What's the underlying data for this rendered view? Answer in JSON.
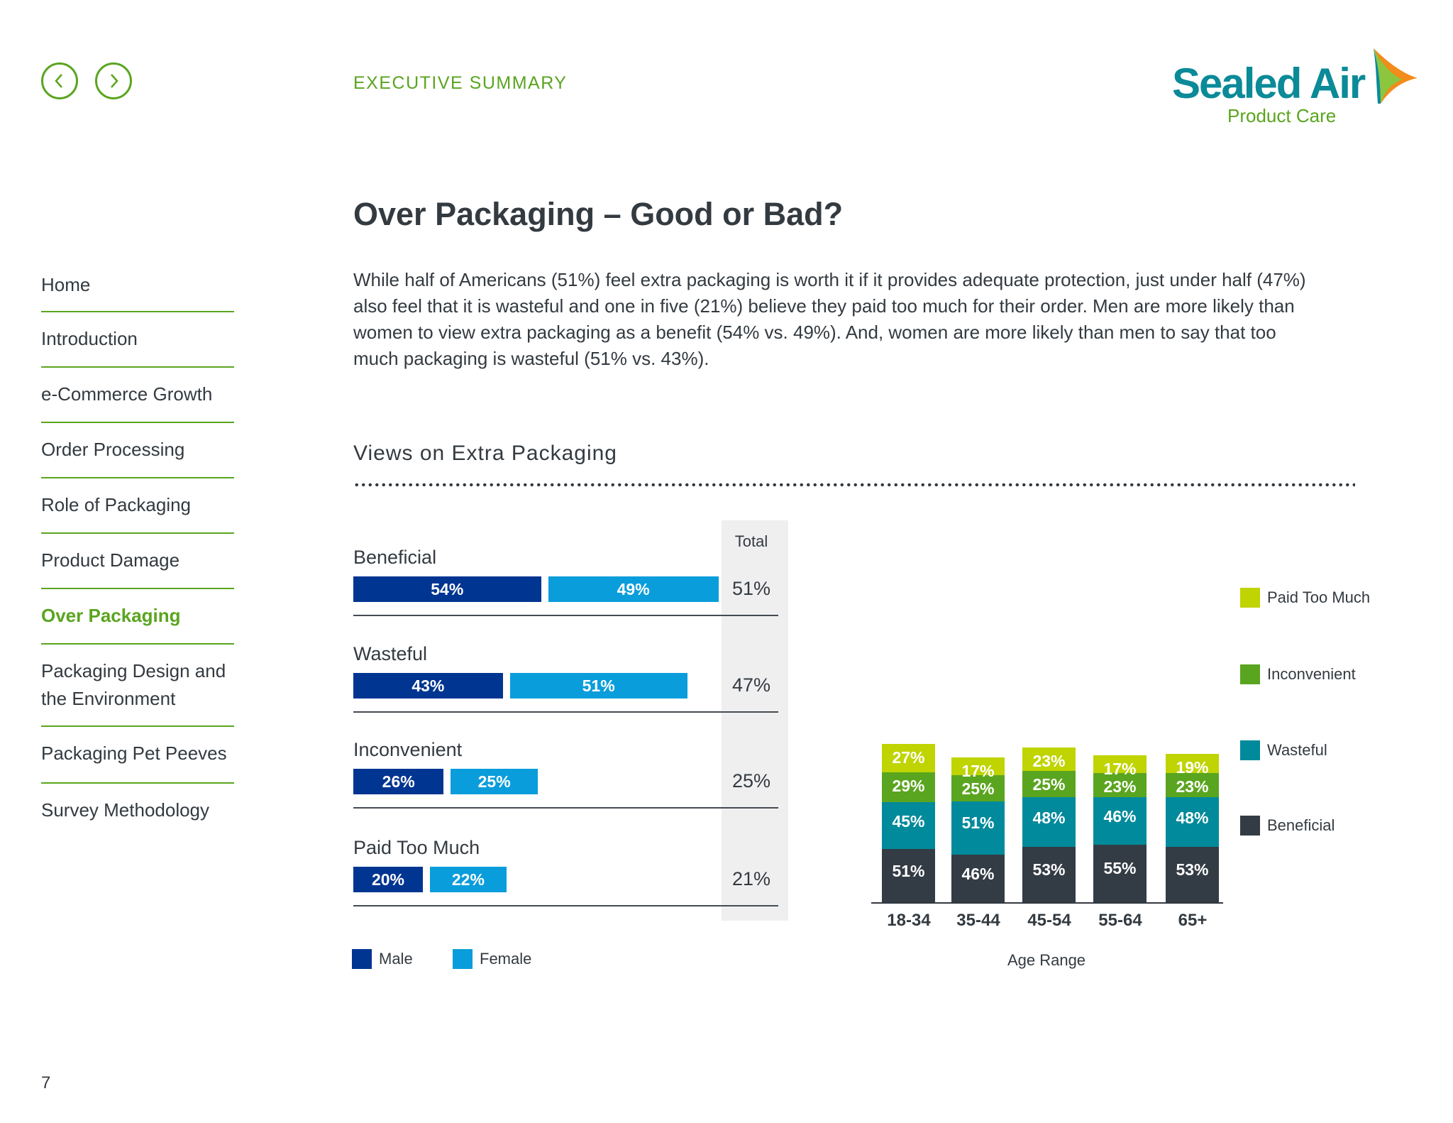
{
  "header": {
    "section": "EXECUTIVE SUMMARY",
    "logo_main": "Sealed Air",
    "logo_sub": "Product Care"
  },
  "nav_buttons": {
    "prev_icon": "chevron-left-icon",
    "next_icon": "chevron-right-icon"
  },
  "sidebar": {
    "items": [
      {
        "label": "Home",
        "active": false
      },
      {
        "label": "Introduction",
        "active": false
      },
      {
        "label": "e-Commerce Growth",
        "active": false
      },
      {
        "label": "Order Processing",
        "active": false
      },
      {
        "label": "Role of Packaging",
        "active": false
      },
      {
        "label": "Product Damage",
        "active": false
      },
      {
        "label": "Over Packaging",
        "active": true
      },
      {
        "label": "Packaging Design and the Environment",
        "active": false
      },
      {
        "label": "Packaging Pet Peeves",
        "active": false
      },
      {
        "label": "Survey Methodology",
        "active": false
      }
    ]
  },
  "page_number": "7",
  "main": {
    "title": "Over Packaging – Good or Bad?",
    "intro": "While half of Americans (51%) feel extra packaging is worth it if it provides adequate protection, just under half (47%) also feel that it is wasteful and one in five (21%) believe they paid too much for their order. Men are more likely than women to view extra packaging as a benefit (54% vs. 49%). And, women are more likely than men to say that too much packaging is wasteful (51% vs. 43%).",
    "chart_heading": "Views on Extra Packaging"
  },
  "colors": {
    "male": "#003591",
    "female": "#0a9ddb",
    "paid_too_much": "#bfd400",
    "inconvenient": "#5aa51f",
    "wasteful": "#018a9b",
    "beneficial": "#333c45",
    "accent": "#5aa51f"
  },
  "chart_data": [
    {
      "type": "bar",
      "orientation": "horizontal",
      "categories": [
        "Beneficial",
        "Wasteful",
        "Inconvenient",
        "Paid Too Much"
      ],
      "series": [
        {
          "name": "Male",
          "values": [
            54,
            43,
            26,
            20
          ],
          "labels": [
            "54%",
            "43%",
            "26%",
            "20%"
          ]
        },
        {
          "name": "Female",
          "values": [
            49,
            51,
            25,
            22
          ],
          "labels": [
            "49%",
            "51%",
            "25%",
            "22%"
          ]
        }
      ],
      "total_label": "Total",
      "totals": [
        "51%",
        "47%",
        "25%",
        "21%"
      ],
      "legend": [
        "Male",
        "Female"
      ],
      "legend_placement": "bottom-left"
    },
    {
      "type": "bar",
      "stacked": true,
      "categories": [
        "18-34",
        "35-44",
        "45-54",
        "55-64",
        "65+"
      ],
      "xlabel": "Age Range",
      "series": [
        {
          "name": "Beneficial",
          "values": [
            51,
            46,
            53,
            55,
            53
          ]
        },
        {
          "name": "Wasteful",
          "values": [
            45,
            51,
            48,
            46,
            48
          ]
        },
        {
          "name": "Inconvenient",
          "values": [
            29,
            25,
            25,
            23,
            23
          ]
        },
        {
          "name": "Paid Too Much",
          "values": [
            27,
            17,
            23,
            17,
            19
          ]
        }
      ],
      "legend": [
        "Paid Too Much",
        "Inconvenient",
        "Wasteful",
        "Beneficial"
      ],
      "legend_placement": "right"
    }
  ]
}
